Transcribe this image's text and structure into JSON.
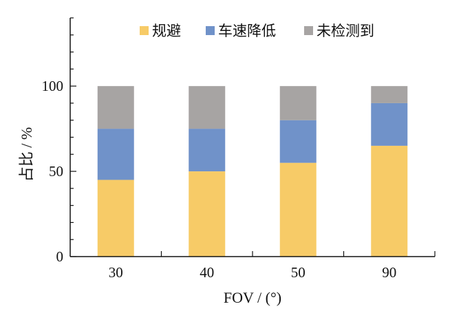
{
  "chart_data": {
    "type": "bar",
    "stacked": true,
    "categories": [
      "30",
      "40",
      "50",
      "90"
    ],
    "series": [
      {
        "name": "规避",
        "values": [
          45,
          50,
          55,
          65
        ],
        "color": "#F7CB67"
      },
      {
        "name": "车速降低",
        "values": [
          30,
          25,
          25,
          25
        ],
        "color": "#7092C9"
      },
      {
        "name": "未检测到",
        "values": [
          25,
          25,
          20,
          10
        ],
        "color": "#A7A4A3"
      }
    ],
    "xlabel": "FOV / (°)",
    "ylabel": "占比 / %",
    "ylim": [
      0,
      140
    ],
    "yticks": [
      0,
      50,
      100
    ],
    "legend_position": "top-right",
    "grid": false
  }
}
